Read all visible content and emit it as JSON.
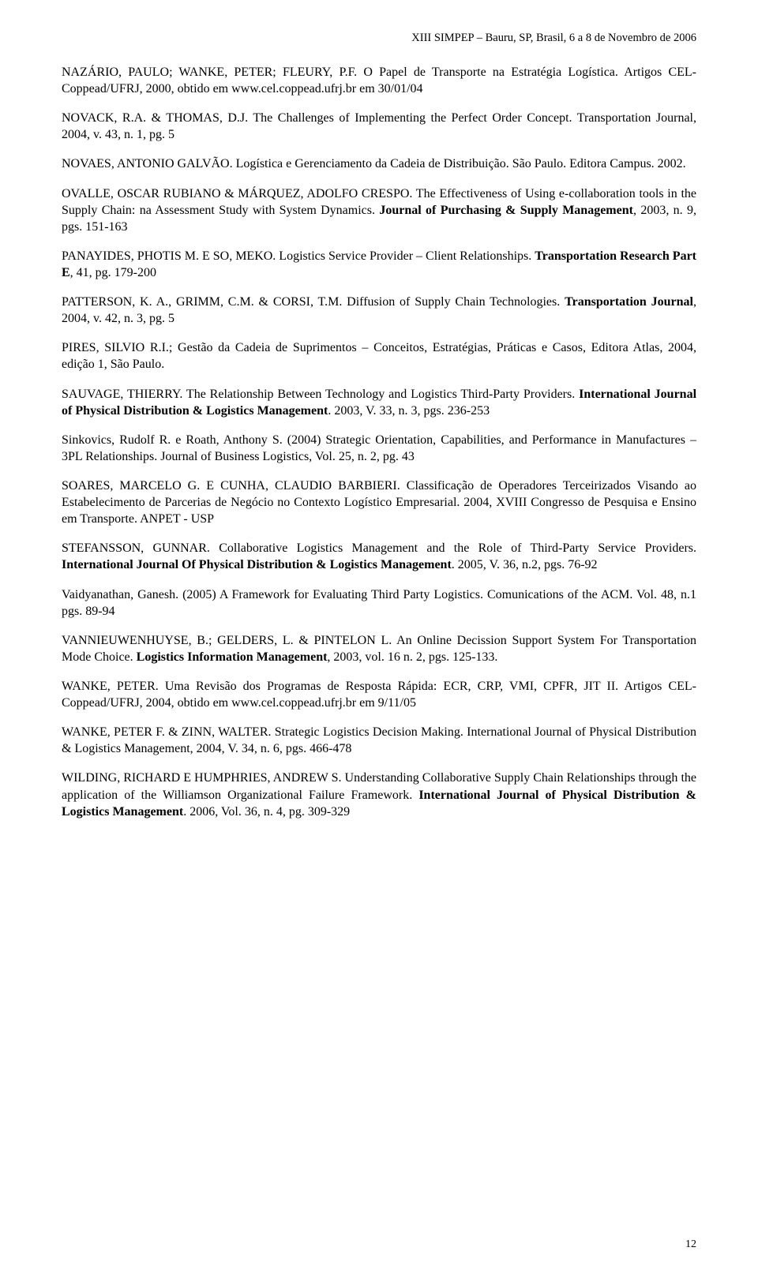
{
  "header": {
    "text": "XIII SIMPEP – Bauru, SP, Brasil, 6 a 8 de Novembro de 2006"
  },
  "references": [
    {
      "html": "NAZÁRIO, PAULO; WANKE, PETER; FLEURY, P.F. O Papel de Transporte na Estratégia Logística. Artigos CEL-Coppead/UFRJ, 2000, obtido em www.cel.coppead.ufrj.br em 30/01/04"
    },
    {
      "html": "NOVACK, R.A. & THOMAS, D.J. The Challenges of Implementing the Perfect Order Concept. Transportation Journal, 2004, v. 43, n. 1, pg. 5"
    },
    {
      "html": "NOVAES, ANTONIO GALVÃO. Logística e Gerenciamento da Cadeia de Distribuição. São Paulo. Editora Campus. 2002."
    },
    {
      "html": "OVALLE, OSCAR RUBIANO & MÁRQUEZ, ADOLFO CRESPO. The Effectiveness of Using e-collaboration tools in the Supply Chain: na Assessment Study with System Dynamics. <b>Journal of Purchasing & Supply Management</b>, 2003, n. 9, pgs. 151-163"
    },
    {
      "html": "PANAYIDES, PHOTIS M. E SO, MEKO. Logistics Service Provider – Client Relationships. <b>Transportation Research Part E</b>, 41, pg. 179-200"
    },
    {
      "html": "PATTERSON, K. A., GRIMM, C.M. & CORSI, T.M. Diffusion of Supply Chain Technologies. <b>Transportation Journal</b>, 2004, v. 42, n. 3, pg. 5"
    },
    {
      "html": "PIRES, SILVIO R.I.; Gestão da Cadeia de Suprimentos – Conceitos, Estratégias, Práticas e Casos, Editora Atlas, 2004, edição 1, São Paulo."
    },
    {
      "html": "SAUVAGE, THIERRY. The Relationship Between Technology and Logistics Third-Party Providers. <b>International Journal of Physical Distribution & Logistics Management</b>. 2003, V. 33, n. 3, pgs. 236-253"
    },
    {
      "html": "Sinkovics, Rudolf R. e Roath, Anthony S. (2004) Strategic Orientation, Capabilities, and Performance in Manufactures – 3PL Relationships. Journal of Business Logistics, Vol. 25, n. 2, pg. 43"
    },
    {
      "html": "SOARES, MARCELO G. E CUNHA, CLAUDIO BARBIERI. Classificação de Operadores Terceirizados Visando ao Estabelecimento de Parcerias de Negócio no Contexto Logístico Empresarial. 2004, XVIII Congresso de Pesquisa e Ensino em Transporte. ANPET - USP"
    },
    {
      "html": "STEFANSSON, GUNNAR. Collaborative Logistics Management and the Role of Third-Party Service Providers. <b>International Journal Of Physical Distribution & Logistics Management</b>. 2005, V. 36, n.2, pgs. 76-92"
    },
    {
      "html": "Vaidyanathan, Ganesh. (2005) A Framework for Evaluating Third Party Logistics. Comunications of the ACM. Vol. 48, n.1 pgs. 89-94"
    },
    {
      "html": "VANNIEUWENHUYSE, B.; GELDERS, L. & PINTELON L. An Online Decission Support System For Transportation Mode Choice. <b>Logistics Information Management</b>, 2003, vol. 16 n. 2, pgs. 125-133."
    },
    {
      "html": "WANKE, PETER. Uma Revisão dos Programas de Resposta Rápida: ECR, CRP, VMI, CPFR, JIT II. Artigos CEL-Coppead/UFRJ, 2004, obtido em www.cel.coppead.ufrj.br em 9/11/05"
    },
    {
      "html": "WANKE, PETER F. & ZINN, WALTER. Strategic Logistics Decision Making. International Journal of Physical Distribution & Logistics Management, 2004, V. 34, n. 6, pgs. 466-478"
    },
    {
      "html": "WILDING, RICHARD E HUMPHRIES, ANDREW S. Understanding Collaborative Supply Chain Relationships through the application of the Williamson Organizational Failure Framework. <b>International Journal of Physical Distribution & Logistics Management</b>. 2006, Vol. 36, n. 4, pg. 309-329"
    }
  ],
  "pageNumber": "12"
}
